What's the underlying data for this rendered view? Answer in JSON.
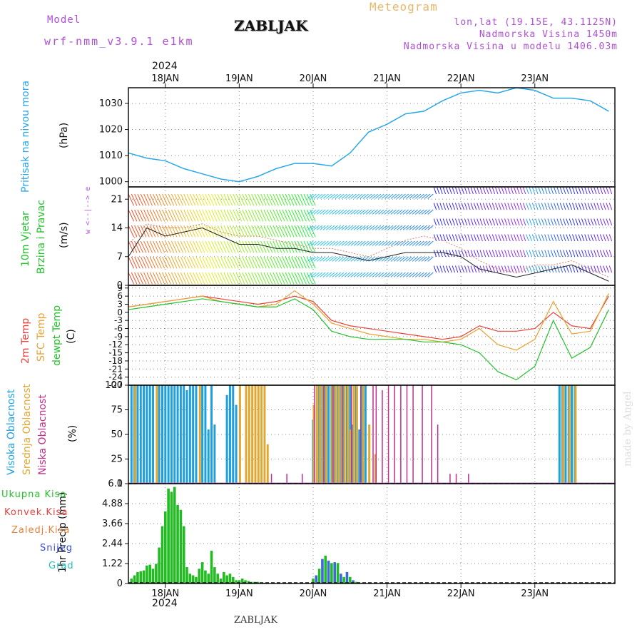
{
  "header": {
    "model_label": "Model",
    "model_name": "wrf-nmm_v3.9.1 e1km",
    "station": "ZABLJAK",
    "title": "Meteogram",
    "coords": "lon,lat (19.15E, 43.1125N)",
    "altitude": "Nadmorska Visina 1450m",
    "model_altitude": "Nadmorska Visina u modelu 1406.03m"
  },
  "footer": {
    "station": "ZABLJAK",
    "signature": "made by Angel"
  },
  "colors": {
    "pressure": "#2aa7e8",
    "temp2m": "#e8423a",
    "sfc": "#e8a232",
    "dew": "#22c22a",
    "high": "#1e9fe0",
    "mid": "#e0a830",
    "low": "#c0308a",
    "precip": "#22bb22",
    "snow": "#3a6ad8",
    "grad": "#22c0c0"
  },
  "chart_data": [
    {
      "type": "line",
      "name": "pressure",
      "ylabel": [
        "Pritisak na nivou mora",
        "(hPa)"
      ],
      "ylim": [
        998,
        1036
      ],
      "yticks": [
        "1000",
        "1010",
        "1020",
        "1030"
      ],
      "ytick_values": [
        1000,
        1010,
        1020,
        1030
      ],
      "x_hours": [
        0,
        6,
        12,
        18,
        24,
        30,
        36,
        42,
        48,
        54,
        60,
        66,
        72,
        78,
        84,
        90,
        96,
        102,
        108,
        114,
        120,
        126,
        132,
        138,
        144,
        150,
        156
      ],
      "values": [
        1011,
        1009,
        1008,
        1005,
        1003,
        1001,
        1000,
        1002,
        1005,
        1007,
        1007,
        1006,
        1011,
        1019,
        1022,
        1026,
        1027,
        1031,
        1034,
        1035,
        1034,
        1036,
        1035,
        1032,
        1032,
        1031,
        1027
      ]
    },
    {
      "type": "line",
      "name": "wind",
      "ylabel": [
        "10m Vjetar",
        "Brzina i Pravac",
        "(m/s)"
      ],
      "compass": "w <--|--> e",
      "ylim": [
        0,
        24
      ],
      "yticks": [
        "0",
        "7",
        "14",
        "21"
      ],
      "ytick_values": [
        0,
        7,
        14,
        21
      ],
      "series": [
        {
          "x_hours": [
            0,
            6,
            12,
            18,
            24,
            30,
            36,
            42,
            48,
            54,
            60,
            66,
            72,
            78,
            84,
            90,
            96,
            102,
            108,
            114,
            120,
            126,
            132,
            138,
            144,
            150,
            156
          ],
          "values": [
            7,
            14,
            12,
            13,
            14,
            12,
            10,
            10,
            9,
            9,
            8,
            8,
            7,
            6,
            7,
            8,
            8,
            8,
            7,
            4,
            3,
            2,
            3,
            4,
            5,
            3,
            1
          ]
        },
        {
          "x_hours": [
            0,
            6,
            12,
            18,
            24,
            30,
            36,
            42,
            48,
            54,
            60,
            66,
            72,
            78,
            84,
            90,
            96,
            102,
            108,
            114,
            120,
            126,
            132,
            138,
            144,
            150,
            156
          ],
          "values": [
            10,
            15,
            14,
            14,
            15,
            13,
            12,
            12,
            11,
            10,
            9,
            9,
            8,
            7,
            9,
            11,
            12,
            11,
            9,
            6,
            4,
            3,
            5,
            5,
            6,
            4,
            2
          ]
        }
      ]
    },
    {
      "type": "line",
      "name": "temperature",
      "ylabel": [
        "2m Temp",
        "SFC Temp",
        "dewpt Temp",
        "(C)"
      ],
      "ylim": [
        -27,
        10
      ],
      "yticks": [
        "9",
        "6",
        "3",
        "0",
        "-3",
        "-6",
        "-9",
        "-12",
        "-15",
        "-18",
        "-21",
        "-24",
        "-27"
      ],
      "ytick_values": [
        9,
        6,
        3,
        0,
        -3,
        -6,
        -9,
        -12,
        -15,
        -18,
        -21,
        -24,
        -27
      ],
      "series": [
        {
          "name": "2m Temp",
          "x_hours": [
            0,
            6,
            12,
            18,
            24,
            30,
            36,
            42,
            48,
            54,
            60,
            66,
            72,
            78,
            84,
            90,
            96,
            102,
            108,
            114,
            120,
            126,
            132,
            138,
            144,
            150,
            156
          ],
          "values": [
            2,
            3,
            4,
            5,
            6,
            5,
            4,
            3,
            4,
            6,
            4,
            -3,
            -5,
            -6,
            -7,
            -8,
            -9,
            -10,
            -9,
            -5,
            -7,
            -7,
            -6,
            0,
            -5,
            -6,
            6
          ]
        },
        {
          "name": "SFC Temp",
          "x_hours": [
            0,
            6,
            12,
            18,
            24,
            30,
            36,
            42,
            48,
            54,
            60,
            66,
            72,
            78,
            84,
            90,
            96,
            102,
            108,
            114,
            120,
            126,
            132,
            138,
            144,
            150,
            156
          ],
          "values": [
            2,
            3,
            4,
            5,
            6,
            4,
            3,
            2,
            3,
            8,
            3,
            -4,
            -6,
            -8,
            -9,
            -10,
            -10,
            -11,
            -10,
            -6,
            -12,
            -14,
            -10,
            4,
            -8,
            -7,
            7
          ]
        },
        {
          "name": "dewpt Temp",
          "x_hours": [
            0,
            6,
            12,
            18,
            24,
            30,
            36,
            42,
            48,
            54,
            60,
            66,
            72,
            78,
            84,
            90,
            96,
            102,
            108,
            114,
            120,
            126,
            132,
            138,
            144,
            150,
            156
          ],
          "values": [
            1,
            2,
            3,
            4,
            5,
            4,
            3,
            2,
            2,
            5,
            1,
            -7,
            -9,
            -10,
            -10,
            -10,
            -11,
            -11,
            -12,
            -15,
            -22,
            -25,
            -20,
            -3,
            -17,
            -13,
            1
          ]
        }
      ]
    },
    {
      "type": "bar",
      "name": "cloud",
      "ylabel": [
        "Visoka Oblacnost",
        "Srednja Oblacnost",
        "Niska Oblacnost",
        "(%)"
      ],
      "ylim": [
        0,
        100
      ],
      "yticks": [
        "0",
        "25",
        "50",
        "75",
        "100"
      ],
      "ytick_values": [
        0,
        25,
        50,
        75,
        100
      ],
      "high_x_hours": [
        1,
        2,
        3,
        4,
        5,
        6,
        7,
        8,
        10,
        11,
        12,
        13,
        14,
        15,
        16,
        17,
        18,
        19,
        20,
        21,
        22,
        24,
        25,
        26,
        27,
        28,
        32,
        33,
        34,
        35,
        60,
        62,
        63,
        64,
        65,
        66,
        67,
        68,
        69,
        70,
        71,
        72,
        73,
        74,
        75,
        76,
        77,
        140,
        141,
        142,
        143,
        144,
        145
      ],
      "high_values": [
        100,
        100,
        100,
        100,
        100,
        100,
        100,
        100,
        100,
        100,
        100,
        100,
        100,
        100,
        100,
        100,
        100,
        95,
        100,
        100,
        100,
        100,
        100,
        55,
        100,
        60,
        90,
        100,
        100,
        80,
        65,
        100,
        100,
        100,
        100,
        100,
        100,
        100,
        100,
        100,
        100,
        100,
        60,
        100,
        55,
        100,
        100,
        100,
        100,
        100,
        100,
        100,
        100
      ],
      "mid_x_hours": [
        2,
        9,
        23,
        36,
        38,
        39,
        40,
        41,
        42,
        43,
        44,
        45,
        60,
        61,
        62,
        63,
        64,
        66,
        67,
        68,
        69,
        70,
        71,
        72,
        73,
        74,
        76,
        78,
        80,
        141,
        143,
        145
      ],
      "mid_values": [
        100,
        100,
        100,
        100,
        100,
        100,
        100,
        100,
        100,
        100,
        100,
        40,
        80,
        100,
        100,
        100,
        100,
        100,
        100,
        100,
        100,
        100,
        100,
        55,
        100,
        100,
        100,
        60,
        30,
        100,
        100,
        100
      ],
      "low_x_hours": [
        46,
        51,
        56,
        60,
        63,
        66,
        69,
        72,
        75,
        79,
        80,
        82,
        84,
        86,
        88,
        90,
        92,
        95,
        98,
        100,
        104,
        106,
        110
      ],
      "low_values": [
        10,
        10,
        10,
        100,
        100,
        100,
        100,
        100,
        100,
        100,
        100,
        95,
        100,
        100,
        100,
        100,
        100,
        100,
        100,
        60,
        10,
        10,
        10
      ]
    },
    {
      "type": "bar",
      "name": "precip",
      "ylabel": [
        "1hr Precip (mm)"
      ],
      "legend": [
        "Ukupna Kisa",
        "Konvek.Kisa",
        "Zaledj.Kisa",
        "Snijeg",
        "Grad"
      ],
      "ylim": [
        0,
        6.1
      ],
      "yticks": [
        "0",
        "1.22",
        "2.44",
        "3.66",
        "4.88",
        "6.1"
      ],
      "ytick_values": [
        0,
        1.22,
        2.44,
        3.66,
        4.88,
        6.1
      ],
      "x_hours": [
        1,
        2,
        3,
        4,
        5,
        6,
        7,
        8,
        9,
        10,
        11,
        12,
        13,
        14,
        15,
        16,
        17,
        18,
        19,
        20,
        21,
        22,
        23,
        24,
        25,
        26,
        27,
        28,
        29,
        30,
        31,
        32,
        33,
        34,
        35,
        36,
        37,
        38,
        39,
        40,
        41,
        42,
        43,
        44,
        60,
        61,
        62,
        63,
        64,
        65,
        66,
        67,
        68,
        69,
        70,
        71,
        72,
        73,
        74,
        75,
        76
      ],
      "values": [
        0.3,
        0.5,
        0.7,
        0.75,
        0.8,
        1.1,
        1.15,
        0.9,
        1.2,
        2.2,
        3.5,
        4.4,
        5.8,
        5.6,
        5.9,
        4.8,
        4.5,
        3.5,
        1.0,
        0.6,
        0.5,
        0.4,
        0.9,
        1.3,
        0.8,
        0.6,
        2.0,
        1.0,
        0.6,
        0.3,
        0.7,
        0.5,
        0.6,
        0.4,
        0.2,
        0.2,
        0.3,
        0.2,
        0.15,
        0.1,
        0.1,
        0.1,
        0.05,
        0.05,
        0.3,
        0.5,
        0.9,
        1.5,
        1.7,
        1.4,
        1.25,
        1.3,
        1.25,
        0.6,
        0.4,
        0.7,
        0.4,
        0.2,
        0.1,
        0.05,
        0.05
      ]
    }
  ],
  "x_axis": {
    "hours_span": 158,
    "day_labels": [
      "18JAN",
      "19JAN",
      "20JAN",
      "21JAN",
      "22JAN",
      "23JAN"
    ],
    "day_hours": [
      12,
      36,
      60,
      84,
      108,
      132
    ],
    "year_top": "2024",
    "year_bottom": "2024"
  }
}
